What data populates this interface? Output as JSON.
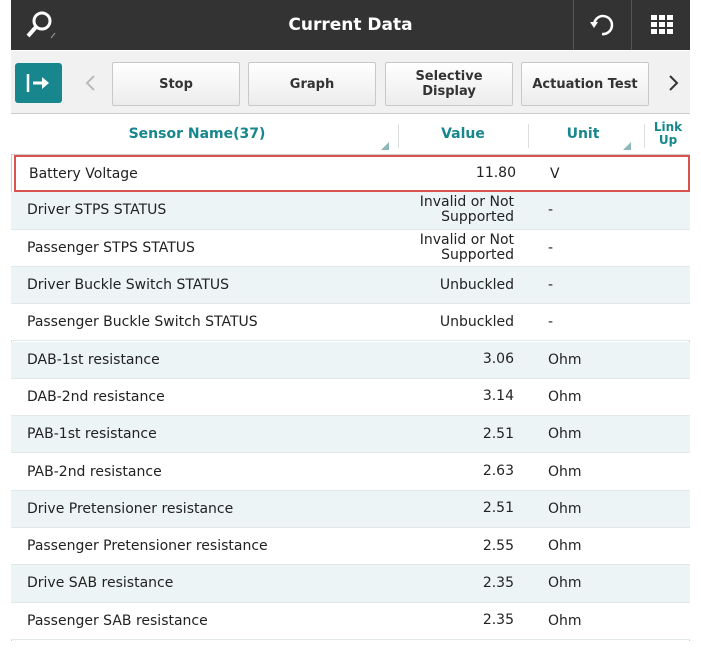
{
  "header": {
    "title": "Current Data"
  },
  "toolbar": {
    "buttons": [
      "Stop",
      "Graph",
      "Selective Display",
      "Actuation Test"
    ]
  },
  "table": {
    "columns": [
      "Sensor Name(37)",
      "Value",
      "Unit",
      "Link Up"
    ],
    "rows": [
      [
        "Battery Voltage",
        "11.80",
        "V"
      ],
      [
        "Driver STPS STATUS",
        "Invalid or Not Supported",
        "-"
      ],
      [
        "Passenger STPS STATUS",
        "Invalid or Not Supported",
        "-"
      ],
      [
        "Driver Buckle Switch STATUS",
        "Unbuckled",
        "-"
      ],
      [
        "Passenger Buckle Switch STATUS",
        "Unbuckled",
        "-"
      ],
      [
        "DAB-1st resistance",
        "3.06",
        "Ohm"
      ],
      [
        "DAB-2nd resistance",
        "3.14",
        "Ohm"
      ],
      [
        "PAB-1st resistance",
        "2.51",
        "Ohm"
      ],
      [
        "PAB-2nd resistance",
        "2.63",
        "Ohm"
      ],
      [
        "Drive Pretensioner resistance",
        "2.51",
        "Ohm"
      ],
      [
        "Passenger Pretensioner resistance",
        "2.55",
        "Ohm"
      ],
      [
        "Drive SAB resistance",
        "2.35",
        "Ohm"
      ],
      [
        "Passenger SAB resistance",
        "2.35",
        "Ohm"
      ]
    ]
  }
}
